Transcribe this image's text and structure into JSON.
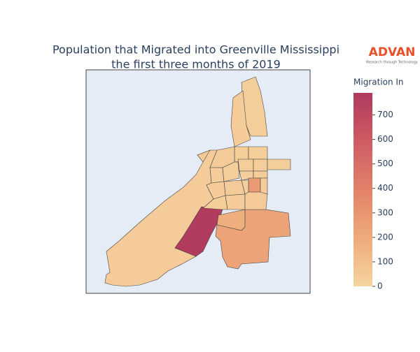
{
  "chart_data": {
    "type": "choropleth",
    "title": "Population that Migrated into Greenville Mississippi",
    "subtitle": "the first three months of 2019",
    "logo": "ADVAN",
    "logo_tagline": "Research through Technology",
    "colorbar_title": "Migration In",
    "colors": [
      "#f5d4a0",
      "#eeaa7b",
      "#e2826a",
      "#cf5b63",
      "#b03a5e"
    ],
    "zlim": [
      0,
      790
    ],
    "zticks": [
      0,
      100,
      200,
      300,
      400,
      500,
      600,
      700
    ],
    "values": [
      40,
      780,
      180,
      230,
      30,
      40,
      35,
      30,
      45,
      40,
      30,
      35,
      30,
      30,
      25,
      35,
      270,
      40,
      45,
      30,
      40,
      35,
      40,
      45,
      50
    ]
  }
}
